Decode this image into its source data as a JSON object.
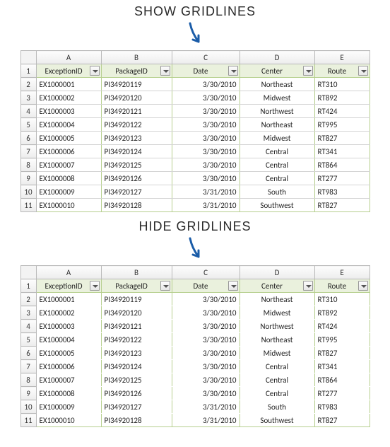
{
  "caption_show": "SHOW GRIDLINES",
  "caption_hide": "HIDE GRIDLINES",
  "arrow_color": "#1a5ca8",
  "columns": [
    {
      "letter": "A",
      "header": "ExceptionID",
      "align": "left",
      "width_class": "col-A"
    },
    {
      "letter": "B",
      "header": "PackageID",
      "align": "left",
      "width_class": "col-B"
    },
    {
      "letter": "C",
      "header": "Date",
      "align": "right",
      "width_class": "col-C"
    },
    {
      "letter": "D",
      "header": "Center",
      "align": "center",
      "width_class": "col-D"
    },
    {
      "letter": "E",
      "header": "Route",
      "align": "left",
      "width_class": "col-E"
    }
  ],
  "rows": [
    {
      "n": 2,
      "ExceptionID": "EX1000001",
      "PackageID": "PI34920119",
      "Date": "3/30/2010",
      "Center": "Northeast",
      "Route": "RT310"
    },
    {
      "n": 3,
      "ExceptionID": "EX1000002",
      "PackageID": "PI34920120",
      "Date": "3/30/2010",
      "Center": "Midwest",
      "Route": "RT892"
    },
    {
      "n": 4,
      "ExceptionID": "EX1000003",
      "PackageID": "PI34920121",
      "Date": "3/30/2010",
      "Center": "Northwest",
      "Route": "RT424"
    },
    {
      "n": 5,
      "ExceptionID": "EX1000004",
      "PackageID": "PI34920122",
      "Date": "3/30/2010",
      "Center": "Northeast",
      "Route": "RT995"
    },
    {
      "n": 6,
      "ExceptionID": "EX1000005",
      "PackageID": "PI34920123",
      "Date": "3/30/2010",
      "Center": "Midwest",
      "Route": "RT827"
    },
    {
      "n": 7,
      "ExceptionID": "EX1000006",
      "PackageID": "PI34920124",
      "Date": "3/30/2010",
      "Center": "Central",
      "Route": "RT341"
    },
    {
      "n": 8,
      "ExceptionID": "EX1000007",
      "PackageID": "PI34920125",
      "Date": "3/30/2010",
      "Center": "Central",
      "Route": "RT864"
    },
    {
      "n": 9,
      "ExceptionID": "EX1000008",
      "PackageID": "PI34920126",
      "Date": "3/30/2010",
      "Center": "Central",
      "Route": "RT277"
    },
    {
      "n": 10,
      "ExceptionID": "EX1000009",
      "PackageID": "PI34920127",
      "Date": "3/31/2010",
      "Center": "South",
      "Route": "RT983"
    },
    {
      "n": 11,
      "ExceptionID": "EX1000010",
      "PackageID": "PI34920128",
      "Date": "3/31/2010",
      "Center": "Southwest",
      "Route": "RT827"
    }
  ],
  "colors": {
    "header_fill": "#eaf1dd",
    "header_border": "#b6cf8e",
    "gridline": "#d4d4d4",
    "colhead_border": "#b9b9b9",
    "text": "#222222",
    "background": "#ffffff"
  }
}
